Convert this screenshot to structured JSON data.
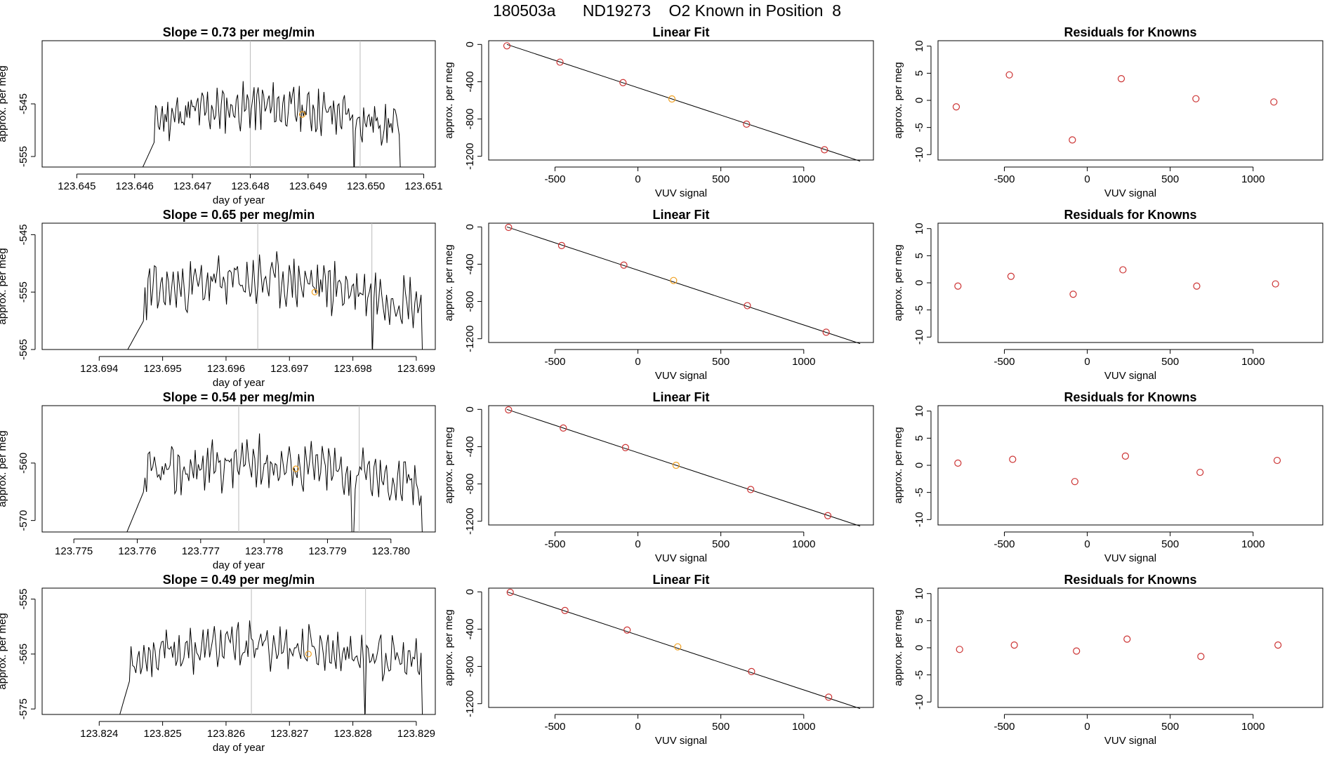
{
  "page_title": "180503a      ND19273    O2 Known in Position  8",
  "colors": {
    "trace": "#000000",
    "axis": "#000000",
    "ref_line": "#bbbbbb",
    "point_red": "#cc3333",
    "point_orange": "#f0a020"
  },
  "chart_data": [
    {
      "type": "line",
      "title": "Slope =  0.73  per meg/min",
      "xlabel": "day of year",
      "ylabel": "approx. per meg",
      "xlim": [
        123.6444,
        123.6512
      ],
      "ylim": [
        -557,
        -533
      ],
      "xticks": [
        123.645,
        123.646,
        123.647,
        123.648,
        123.649,
        123.65,
        123.651
      ],
      "xticklabels": [
        "123.645",
        "123.646",
        "123.647",
        "123.648",
        "123.649",
        "123.650",
        "123.651"
      ],
      "yticks": [
        -545,
        -555
      ],
      "yticklabels": [
        "-545",
        "-555"
      ],
      "vlines": [
        123.648,
        123.6499
      ],
      "highlight": {
        "x": 123.6489,
        "y": -547
      },
      "start": 123.6461,
      "end": 123.6506,
      "base": -548.5,
      "amp": 3,
      "noise": 3.2,
      "seed": 11,
      "edge": {
        "from": -558,
        "to": -552,
        "width": 0.00025
      },
      "drop": 123.6498,
      "drop_y": -559
    },
    {
      "type": "line",
      "title": "Slope =  0.65  per meg/min",
      "xlabel": "day of year",
      "ylabel": "approx. per meg",
      "xlim": [
        123.6931,
        123.6993
      ],
      "ylim": [
        -565,
        -543
      ],
      "xticks": [
        123.694,
        123.695,
        123.696,
        123.697,
        123.698,
        123.699
      ],
      "xticklabels": [
        "123.694",
        "123.695",
        "123.696",
        "123.697",
        "123.698",
        "123.699"
      ],
      "yticks": [
        -545,
        -555,
        -565
      ],
      "yticklabels": [
        "-545",
        "-555",
        "-565"
      ],
      "vlines": [
        123.6965,
        123.6983
      ],
      "highlight": {
        "x": 123.6974,
        "y": -555
      },
      "start": 123.6944,
      "end": 123.6991,
      "base": -556,
      "amp": 3,
      "noise": 3.4,
      "seed": 23,
      "edge": {
        "from": -566,
        "to": -560,
        "width": 0.0003
      },
      "drop": 123.6983,
      "drop_y": -566
    },
    {
      "type": "line",
      "title": "Slope =  0.54  per meg/min",
      "xlabel": "day of year",
      "ylabel": "approx. per meg",
      "xlim": [
        123.7745,
        123.7807
      ],
      "ylim": [
        -572,
        -550
      ],
      "xticks": [
        123.775,
        123.776,
        123.777,
        123.778,
        123.779,
        123.78
      ],
      "xticklabels": [
        "123.775",
        "123.776",
        "123.777",
        "123.778",
        "123.779",
        "123.780"
      ],
      "yticks": [
        -560,
        -570
      ],
      "yticklabels": [
        "-560",
        "-570"
      ],
      "vlines": [
        123.7776,
        123.7795
      ],
      "highlight": {
        "x": 123.7785,
        "y": -561
      },
      "start": 123.7758,
      "end": 123.7805,
      "base": -563,
      "amp": 3,
      "noise": 3.3,
      "seed": 37,
      "edge": {
        "from": -573,
        "to": -565,
        "width": 0.0003
      },
      "drop": 123.7794,
      "drop_y": -573
    },
    {
      "type": "line",
      "title": "Slope =  0.49  per meg/min",
      "xlabel": "day of year",
      "ylabel": "approx. per meg",
      "xlim": [
        123.8231,
        123.8293
      ],
      "ylim": [
        -576,
        -553
      ],
      "xticks": [
        123.824,
        123.825,
        123.826,
        123.827,
        123.828,
        123.829
      ],
      "xticklabels": [
        "123.824",
        "123.825",
        "123.826",
        "123.827",
        "123.828",
        "123.829"
      ],
      "yticks": [
        -555,
        -565,
        -575
      ],
      "yticklabels": [
        "-555",
        "-565",
        "-575"
      ],
      "vlines": [
        123.8264,
        123.8282
      ],
      "highlight": {
        "x": 123.8273,
        "y": -565
      },
      "start": 123.8243,
      "end": 123.8291,
      "base": -566,
      "amp": 2.5,
      "noise": 3.0,
      "seed": 53,
      "edge": {
        "from": -577,
        "to": -569,
        "width": 0.0002
      },
      "drop": 123.8282,
      "drop_y": -577
    },
    {
      "type": "scatter",
      "title": "Linear Fit",
      "xlabel": "VUV signal",
      "ylabel": "approx. per meg",
      "xlim": [
        -900,
        1420
      ],
      "ylim": [
        -1240,
        40
      ],
      "xticks": [
        -500,
        0,
        500,
        1000
      ],
      "xticklabels": [
        "-500",
        "0",
        "500",
        "1000"
      ],
      "yticks": [
        0,
        -400,
        -800,
        -1200
      ],
      "yticklabels": [
        "0",
        "-400",
        "-800",
        "-1200"
      ],
      "fit": {
        "x": [
          -790,
          1340
        ],
        "y": [
          0,
          -1252
        ]
      },
      "points": [
        {
          "x": -790,
          "y": -15,
          "c": "red"
        },
        {
          "x": -470,
          "y": -190,
          "c": "red"
        },
        {
          "x": -90,
          "y": -410,
          "c": "red"
        },
        {
          "x": 205,
          "y": -585,
          "c": "orange"
        },
        {
          "x": 655,
          "y": -855,
          "c": "red"
        },
        {
          "x": 1125,
          "y": -1130,
          "c": "red"
        }
      ]
    },
    {
      "type": "scatter",
      "title": "Residuals for Knowns",
      "xlabel": "VUV signal",
      "ylabel": "approx. per meg",
      "xlim": [
        -900,
        1420
      ],
      "ylim": [
        -11,
        11
      ],
      "xticks": [
        -500,
        0,
        500,
        1000
      ],
      "xticklabels": [
        "-500",
        "0",
        "500",
        "1000"
      ],
      "yticks": [
        10,
        5,
        0,
        -5,
        -10
      ],
      "yticklabels": [
        "10",
        "5",
        "0",
        "-5",
        "-10"
      ],
      "points": [
        {
          "x": -790,
          "y": -1.2,
          "c": "red"
        },
        {
          "x": -470,
          "y": 4.7,
          "c": "red"
        },
        {
          "x": -90,
          "y": -7.3,
          "c": "red"
        },
        {
          "x": 205,
          "y": 4.0,
          "c": "red"
        },
        {
          "x": 655,
          "y": 0.3,
          "c": "red"
        },
        {
          "x": 1125,
          "y": -0.3,
          "c": "red"
        }
      ]
    },
    {
      "type": "scatter",
      "title": "Linear Fit",
      "xlabel": "VUV signal",
      "ylabel": "approx. per meg",
      "xlim": [
        -900,
        1420
      ],
      "ylim": [
        -1240,
        40
      ],
      "xticks": [
        -500,
        0,
        500,
        1000
      ],
      "xticklabels": [
        "-500",
        "0",
        "500",
        "1000"
      ],
      "yticks": [
        0,
        -400,
        -800,
        -1200
      ],
      "yticklabels": [
        "0",
        "-400",
        "-800",
        "-1200"
      ],
      "fit": {
        "x": [
          -790,
          1340
        ],
        "y": [
          0,
          -1252
        ]
      },
      "points": [
        {
          "x": -780,
          "y": -5,
          "c": "red"
        },
        {
          "x": -460,
          "y": -200,
          "c": "red"
        },
        {
          "x": -85,
          "y": -410,
          "c": "red"
        },
        {
          "x": 215,
          "y": -575,
          "c": "orange"
        },
        {
          "x": 660,
          "y": -845,
          "c": "red"
        },
        {
          "x": 1135,
          "y": -1130,
          "c": "red"
        }
      ]
    },
    {
      "type": "scatter",
      "title": "Residuals for Knowns",
      "xlabel": "VUV signal",
      "ylabel": "approx. per meg",
      "xlim": [
        -900,
        1420
      ],
      "ylim": [
        -11,
        11
      ],
      "xticks": [
        -500,
        0,
        500,
        1000
      ],
      "xticklabels": [
        "-500",
        "0",
        "500",
        "1000"
      ],
      "yticks": [
        10,
        5,
        0,
        -5,
        -10
      ],
      "yticklabels": [
        "10",
        "5",
        "0",
        "-5",
        "-10"
      ],
      "points": [
        {
          "x": -780,
          "y": -0.6,
          "c": "red"
        },
        {
          "x": -460,
          "y": 1.2,
          "c": "red"
        },
        {
          "x": -85,
          "y": -2.1,
          "c": "red"
        },
        {
          "x": 215,
          "y": 2.4,
          "c": "red"
        },
        {
          "x": 660,
          "y": -0.6,
          "c": "red"
        },
        {
          "x": 1135,
          "y": -0.2,
          "c": "red"
        }
      ]
    },
    {
      "type": "scatter",
      "title": "Linear Fit",
      "xlabel": "VUV signal",
      "ylabel": "approx. per meg",
      "xlim": [
        -900,
        1420
      ],
      "ylim": [
        -1240,
        40
      ],
      "xticks": [
        -500,
        0,
        500,
        1000
      ],
      "xticklabels": [
        "-500",
        "0",
        "500",
        "1000"
      ],
      "yticks": [
        0,
        -400,
        -800,
        -1200
      ],
      "yticklabels": [
        "0",
        "-400",
        "-800",
        "-1200"
      ],
      "fit": {
        "x": [
          -790,
          1340
        ],
        "y": [
          0,
          -1252
        ]
      },
      "points": [
        {
          "x": -780,
          "y": -5,
          "c": "red"
        },
        {
          "x": -450,
          "y": -200,
          "c": "red"
        },
        {
          "x": -75,
          "y": -410,
          "c": "red"
        },
        {
          "x": 230,
          "y": -600,
          "c": "orange"
        },
        {
          "x": 680,
          "y": -860,
          "c": "red"
        },
        {
          "x": 1145,
          "y": -1140,
          "c": "red"
        }
      ]
    },
    {
      "type": "scatter",
      "title": "Residuals for Knowns",
      "xlabel": "VUV signal",
      "ylabel": "approx. per meg",
      "xlim": [
        -900,
        1420
      ],
      "ylim": [
        -11,
        11
      ],
      "xticks": [
        -500,
        0,
        500,
        1000
      ],
      "xticklabels": [
        "-500",
        "0",
        "500",
        "1000"
      ],
      "yticks": [
        10,
        5,
        0,
        -5,
        -10
      ],
      "yticklabels": [
        "10",
        "5",
        "0",
        "-5",
        "-10"
      ],
      "points": [
        {
          "x": -780,
          "y": 0.4,
          "c": "red"
        },
        {
          "x": -450,
          "y": 1.1,
          "c": "red"
        },
        {
          "x": -75,
          "y": -3.0,
          "c": "red"
        },
        {
          "x": 230,
          "y": 1.7,
          "c": "red"
        },
        {
          "x": 680,
          "y": -1.3,
          "c": "red"
        },
        {
          "x": 1145,
          "y": 0.9,
          "c": "red"
        }
      ]
    },
    {
      "type": "scatter",
      "title": "Linear Fit",
      "xlabel": "VUV signal",
      "ylabel": "approx. per meg",
      "xlim": [
        -900,
        1420
      ],
      "ylim": [
        -1240,
        40
      ],
      "xticks": [
        -500,
        0,
        500,
        1000
      ],
      "xticklabels": [
        "-500",
        "0",
        "500",
        "1000"
      ],
      "yticks": [
        0,
        -400,
        -800,
        -1200
      ],
      "yticklabels": [
        "0",
        "-400",
        "-800",
        "-1200"
      ],
      "fit": {
        "x": [
          -790,
          1340
        ],
        "y": [
          0,
          -1252
        ]
      },
      "points": [
        {
          "x": -770,
          "y": -5,
          "c": "red"
        },
        {
          "x": -440,
          "y": -200,
          "c": "red"
        },
        {
          "x": -65,
          "y": -410,
          "c": "red"
        },
        {
          "x": 240,
          "y": -590,
          "c": "orange"
        },
        {
          "x": 685,
          "y": -855,
          "c": "red"
        },
        {
          "x": 1150,
          "y": -1130,
          "c": "red"
        }
      ]
    },
    {
      "type": "scatter",
      "title": "Residuals for Knowns",
      "xlabel": "VUV signal",
      "ylabel": "approx. per meg",
      "xlim": [
        -900,
        1420
      ],
      "ylim": [
        -11,
        11
      ],
      "xticks": [
        -500,
        0,
        500,
        1000
      ],
      "xticklabels": [
        "-500",
        "0",
        "500",
        "1000"
      ],
      "yticks": [
        10,
        5,
        0,
        -5,
        -10
      ],
      "yticklabels": [
        "10",
        "5",
        "0",
        "-5",
        "-10"
      ],
      "points": [
        {
          "x": -770,
          "y": -0.3,
          "c": "red"
        },
        {
          "x": -440,
          "y": 0.5,
          "c": "red"
        },
        {
          "x": -65,
          "y": -0.6,
          "c": "red"
        },
        {
          "x": 240,
          "y": 1.6,
          "c": "red"
        },
        {
          "x": 685,
          "y": -1.6,
          "c": "red"
        },
        {
          "x": 1150,
          "y": 0.5,
          "c": "red"
        }
      ]
    }
  ]
}
